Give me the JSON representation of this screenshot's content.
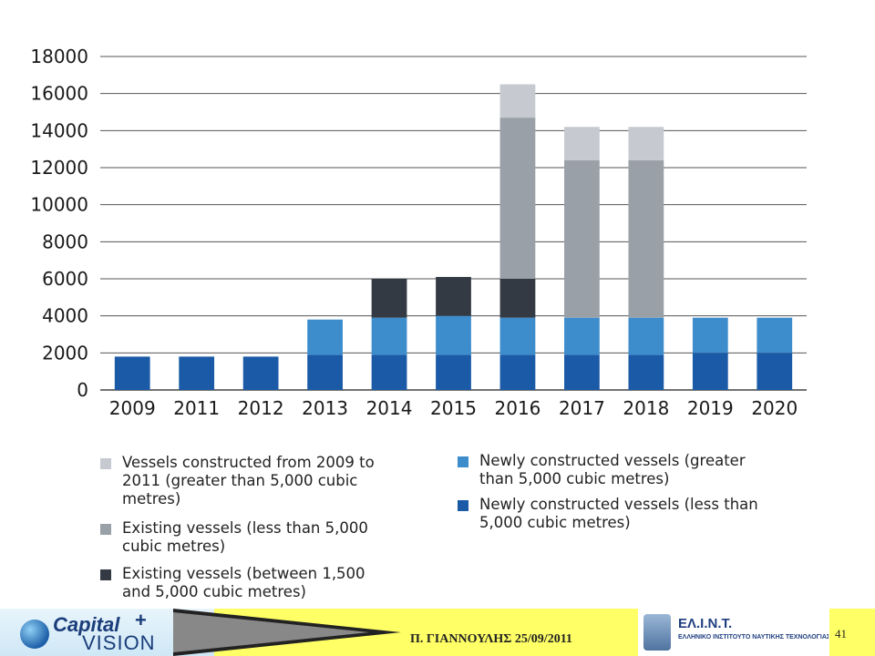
{
  "chart_data": {
    "type": "bar",
    "stacked": true,
    "categories": [
      "2009",
      "2011",
      "2012",
      "2013",
      "2014",
      "2015",
      "2016",
      "2017",
      "2018",
      "2019",
      "2020"
    ],
    "series": [
      {
        "name": "Newly constructed vessels (less than 5,000 cubic metres)",
        "color": "#1a5aa6",
        "values": [
          1800,
          1800,
          1800,
          1900,
          1900,
          1900,
          1900,
          1900,
          1900,
          2000,
          2000
        ]
      },
      {
        "name": "Newly constructed vessels (greater than 5,000 cubic metres)",
        "color": "#3d8ccc",
        "values": [
          0,
          0,
          0,
          1900,
          2000,
          2100,
          2000,
          2000,
          2000,
          1900,
          1900
        ]
      },
      {
        "name": "Existing vessels (between 1,500 and 5,000 cubic metres)",
        "color": "#333a44",
        "values": [
          0,
          0,
          0,
          0,
          2100,
          2100,
          2100,
          0,
          0,
          0,
          0
        ]
      },
      {
        "name": "Existing vessels (less than 5,000 cubic metres)",
        "color": "#9aa0a8",
        "values": [
          0,
          0,
          0,
          0,
          0,
          0,
          8700,
          8500,
          8500,
          0,
          0
        ]
      },
      {
        "name": "Vessels constructed from 2009 to 2011 (greater than 5,000 cubic metres)",
        "color": "#c6cad0",
        "values": [
          0,
          0,
          0,
          0,
          0,
          0,
          1800,
          1800,
          1800,
          0,
          0
        ]
      }
    ],
    "yticks": [
      "0",
      "2000",
      "4000",
      "6000",
      "8000",
      "10000",
      "12000",
      "14000",
      "16000",
      "18000"
    ],
    "ylim": [
      0,
      18000
    ],
    "grid": true,
    "legend_position": "bottom",
    "legend": [
      {
        "label": "Vessels constructed from 2009 to\n2011 (greater than 5,000 cubic\nmetres)",
        "color": "#c6cad0"
      },
      {
        "label": "Existing vessels (less than 5,000\ncubic metres)",
        "color": "#9aa0a8"
      },
      {
        "label": "Existing vessels (between 1,500\nand 5,000 cubic metres)",
        "color": "#333a44"
      },
      {
        "label": "Newly constructed vessels (greater\nthan 5,000 cubic metres)",
        "color": "#3d8ccc"
      },
      {
        "label": "Newly constructed vessels (less than\n5,000 cubic metres)",
        "color": "#1a5aa6"
      }
    ]
  },
  "footer": {
    "logo_name_1": "Capital",
    "logo_name_2": "VISION",
    "author_date": "Π. ΓΙΑΝΝΟΥΛΗΣ   25/09/2011",
    "institute_abbr": "ΕΛ.Ι.Ν.Τ.",
    "institute_name": "ΕΛΛΗΝΙΚΟ ΙΝΣΤΙΤΟΥΤΟ ΝΑΥΤΙΚΗΣ ΤΕΧΝΟΛΟΓΙΑΣ",
    "page_number": "41"
  }
}
